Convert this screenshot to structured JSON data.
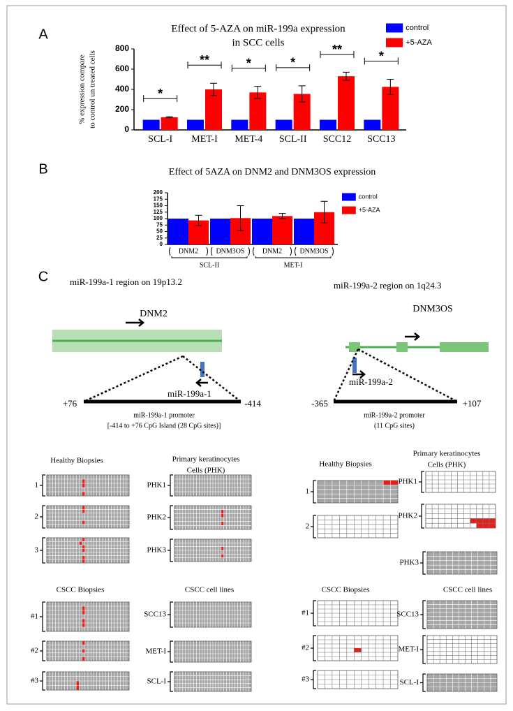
{
  "chart_data": [
    {
      "type": "bar",
      "panel": "A",
      "title": [
        "Effect of 5-AZA on miR-199a expression",
        "in SCC cells"
      ],
      "y_label": [
        "% expression compare",
        "to control  un treated cells"
      ],
      "categories": [
        "SCL-I",
        "MET-I",
        "MET-4",
        "SCL-II",
        "SCC12",
        "SCC13"
      ],
      "series": [
        {
          "name": "control",
          "color": "#0000ff",
          "values": [
            100,
            100,
            100,
            100,
            100,
            100
          ]
        },
        {
          "name": "+5-AZA",
          "color": "#ff0000",
          "values": [
            125,
            400,
            370,
            355,
            530,
            425
          ],
          "errors": [
            5,
            60,
            60,
            80,
            40,
            75
          ]
        }
      ],
      "annotations": [
        "*",
        "**",
        "*",
        "*",
        "**",
        "*"
      ],
      "ylim": [
        0,
        800
      ],
      "yticks": [
        0,
        200,
        400,
        600,
        800
      ],
      "legend": "top-right"
    },
    {
      "type": "bar",
      "panel": "B",
      "title": [
        "Effect of 5AZA on DNM2 and DNM3OS expression"
      ],
      "categories": [
        "DNM2",
        "DNM3OS",
        "DNM2",
        "DNM3OS"
      ],
      "group_labels": [
        "SCL-II",
        "MET-I"
      ],
      "series": [
        {
          "name": "control",
          "color": "#0000ff",
          "values": [
            100,
            100,
            100,
            100
          ]
        },
        {
          "name": "+5-AZA",
          "color": "#ff0000",
          "values": [
            93,
            102,
            110,
            125
          ],
          "errors": [
            20,
            48,
            10,
            42
          ]
        }
      ],
      "ylim": [
        0,
        200
      ],
      "yticks": [
        0,
        25,
        50,
        75,
        100,
        125,
        150,
        175,
        200
      ],
      "legend": "top-right"
    }
  ],
  "panel_c": {
    "label": "C",
    "left": {
      "region": "miR-199a-1 region on 19p13.2",
      "gene": "DNM2",
      "mirna": "miR-199a-1",
      "start": "+76",
      "end": "-414",
      "promoter": "miR-199a-1  promoter",
      "promoter_note": "[-414 to +76 CpG Island (28 CpG sites)]",
      "healthy_title": [
        "Healthy Biopsies"
      ],
      "healthy_rows": [
        "1",
        "2",
        "3"
      ],
      "phk_title": [
        "Primary keratinocytes",
        "Cells (PHK)"
      ],
      "phk_rows": [
        "PHK1",
        "PHK2",
        "PHK3"
      ],
      "cscc_title": [
        "CSCC Biopsies"
      ],
      "cscc_rows": [
        "#1",
        "#2",
        "#3"
      ],
      "lines_title": [
        "CSCC cell lines"
      ],
      "lines_rows": [
        "SCC13",
        "MET-I",
        "SCL-I"
      ]
    },
    "right": {
      "region": "miR-199a-2 region on 1q24.3",
      "gene": "DNM3OS",
      "mirna": "miR-199a-2",
      "start": "-365",
      "end": "+107",
      "promoter": "miR-199a-2  promoter",
      "promoter_note": "(11 CpG sites)",
      "healthy_title": [
        "Healthy Biopsies"
      ],
      "healthy_rows": [
        "1",
        "2"
      ],
      "phk_title": [
        "Primary keratinocytes",
        "Cells (PHK)"
      ],
      "phk_rows": [
        "PHK1",
        "PHK2",
        "PHK3"
      ],
      "cscc_title": [
        "CSCC Biopsies"
      ],
      "cscc_rows": [
        "#1",
        "#2",
        "#3"
      ],
      "lines_title": [
        "CSCC cell lines"
      ],
      "lines_rows": [
        "SCC13",
        "MET-I",
        "SCL-I"
      ]
    }
  }
}
